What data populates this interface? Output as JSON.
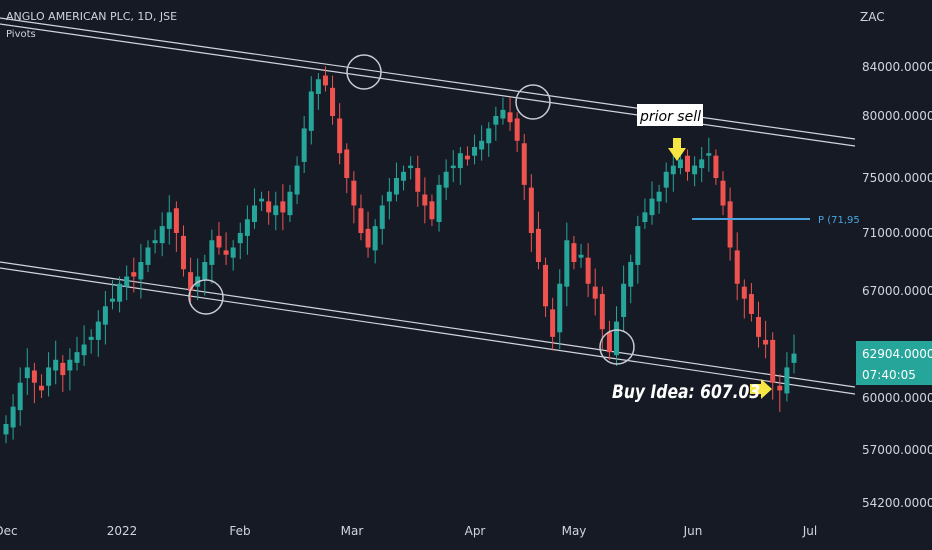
{
  "header": {
    "title": "ANGLO AMERICAN PLC, 1D, JSE",
    "indicator": "Pivots",
    "currency": "ZAC"
  },
  "annotations": {
    "prior_sell": "prior sell",
    "buy_idea": "Buy Idea: 607.03",
    "pivot_label": "P (71,95"
  },
  "price_badge": {
    "price": "62904.0000",
    "countdown": "07:40:05",
    "color": "#26a69a"
  },
  "colors": {
    "up": "#26a69a",
    "down": "#ef5350",
    "background": "#161a25",
    "channel": "#d1d4dc",
    "pivot": "#4aa3df",
    "arrow": "#f5e642"
  },
  "chart_data": {
    "type": "candlestick",
    "title": "ANGLO AMERICAN PLC, 1D, JSE",
    "y_tick_labels": [
      "84000.0000",
      "80000.0000",
      "75000.0000",
      "71000.0000",
      "67000.0000",
      "60000.0000",
      "57000.0000",
      "54200.0000"
    ],
    "y_ticks": [
      84000,
      80000,
      75000,
      71000,
      67000,
      60000,
      57000,
      54200
    ],
    "x_tick_labels": [
      "Dec",
      "2022",
      "Feb",
      "Mar",
      "Apr",
      "May",
      "Jun",
      "Jul"
    ],
    "ylim": [
      52000,
      88500
    ],
    "grid": false,
    "scale": "non-linear (as printed on price axis)",
    "candle_closes_approx": [
      58500,
      59500,
      61000,
      62000,
      61000,
      60500,
      62000,
      62500,
      61500,
      62500,
      63000,
      63500,
      64000,
      65000,
      66000,
      66500,
      67500,
      68000,
      68000,
      69000,
      70000,
      70500,
      71500,
      72500,
      71000,
      68500,
      67000,
      68000,
      69000,
      70500,
      70000,
      69500,
      70000,
      71000,
      72000,
      73000,
      73500,
      72500,
      73000,
      72500,
      74000,
      76000,
      79000,
      82000,
      83000,
      82500,
      80000,
      77000,
      75000,
      73000,
      71000,
      70000,
      71500,
      73000,
      74000,
      75000,
      75500,
      76000,
      74000,
      73000,
      72000,
      74500,
      75500,
      76000,
      77000,
      76500,
      77500,
      78000,
      79000,
      80000,
      80500,
      79500,
      78000,
      74500,
      71000,
      69000,
      66000,
      64000,
      67500,
      70500,
      69000,
      69500,
      67500,
      66500,
      64500,
      63000,
      65000,
      67500,
      69000,
      71500,
      72500,
      73500,
      74000,
      75500,
      76000,
      76500,
      75500,
      76000,
      76500,
      77000,
      75000,
      73000,
      70000,
      67500,
      66500,
      65500,
      64000,
      63500,
      61000,
      60500,
      62000,
      62904
    ]
  }
}
